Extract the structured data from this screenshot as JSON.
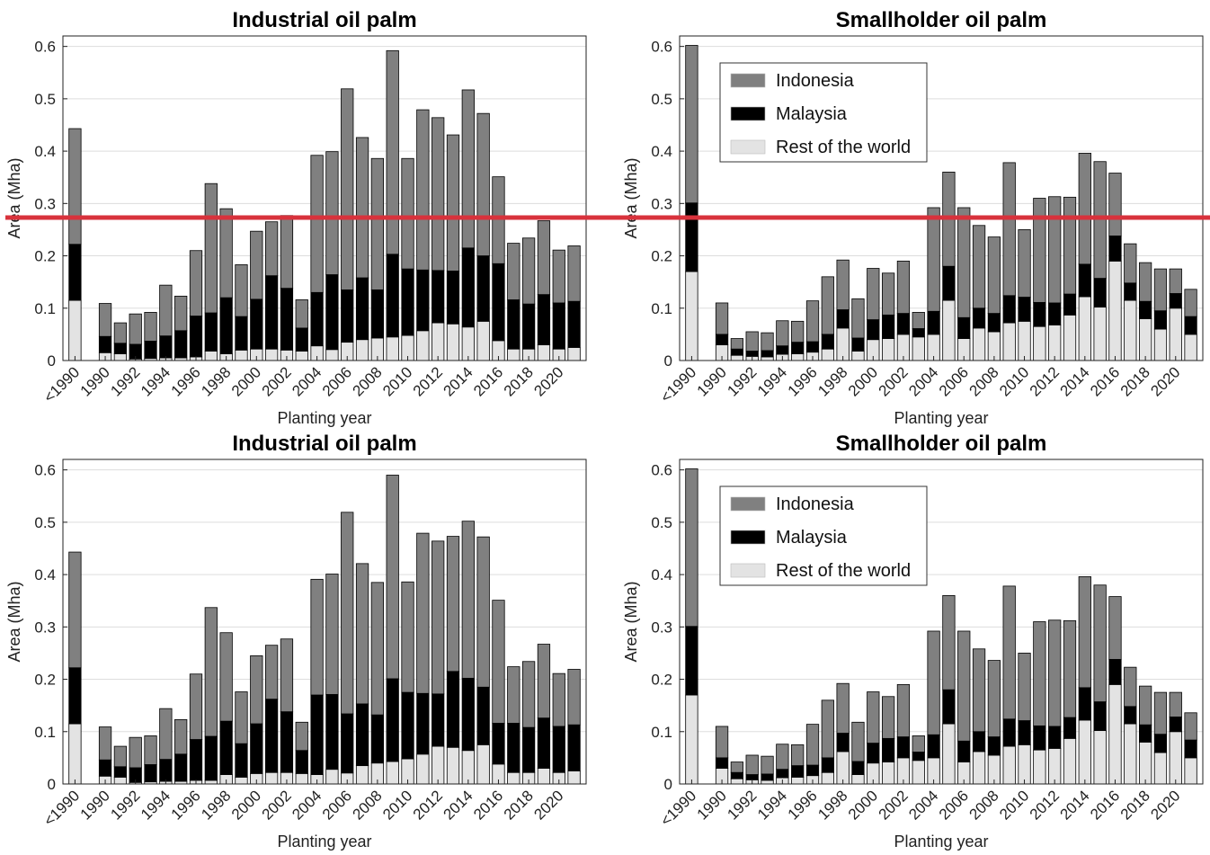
{
  "colors": {
    "Indonesia": "#808080",
    "Malaysia": "#000000",
    "Rest of the world": "#e3e3e3",
    "grid": "#dddddd",
    "overlay_line": "#d8323c"
  },
  "overlay": {
    "type": "horizontal-line",
    "color": "#d8323c",
    "description": "red horizontal line across the figure"
  },
  "chart_data": [
    {
      "type": "bar",
      "stacked": true,
      "title": "Industrial oil palm",
      "xlabel": "Planting year",
      "ylabel": "Area (Mha)",
      "ylim": [
        0,
        0.62
      ],
      "yticks": [
        "0",
        "0.1",
        "0.2",
        "0.3",
        "0.4",
        "0.5",
        "0.6"
      ],
      "grid": true,
      "legend": "none",
      "gap_after_first": true,
      "categories": [
        "<1990",
        "1990",
        "1991",
        "1992",
        "1993",
        "1994",
        "1995",
        "1996",
        "1997",
        "1998",
        "1999",
        "2000",
        "2001",
        "2002",
        "2003",
        "2004",
        "2005",
        "2006",
        "2007",
        "2008",
        "2009",
        "2010",
        "2011",
        "2012",
        "2013",
        "2014",
        "2015",
        "2016",
        "2017",
        "2018",
        "2019",
        "2020",
        "2021"
      ],
      "xtick_labels": [
        "<1990",
        "1990",
        "1992",
        "1994",
        "1996",
        "1998",
        "2000",
        "2002",
        "2004",
        "2006",
        "2008",
        "2010",
        "2012",
        "2014",
        "2016",
        "2018",
        "2020"
      ],
      "series": [
        {
          "name": "Rest of the world",
          "values": [
            0.115,
            0.015,
            0.013,
            0.003,
            0.004,
            0.005,
            0.005,
            0.007,
            0.018,
            0.013,
            0.02,
            0.022,
            0.022,
            0.02,
            0.018,
            0.028,
            0.021,
            0.035,
            0.04,
            0.043,
            0.045,
            0.048,
            0.057,
            0.072,
            0.07,
            0.064,
            0.075,
            0.038,
            0.022,
            0.022,
            0.03,
            0.022,
            0.025
          ]
        },
        {
          "name": "Malaysia",
          "values": [
            0.107,
            0.031,
            0.02,
            0.028,
            0.033,
            0.042,
            0.052,
            0.078,
            0.073,
            0.107,
            0.064,
            0.095,
            0.14,
            0.118,
            0.044,
            0.102,
            0.143,
            0.1,
            0.118,
            0.092,
            0.158,
            0.127,
            0.116,
            0.1,
            0.101,
            0.151,
            0.125,
            0.147,
            0.094,
            0.086,
            0.096,
            0.088,
            0.088
          ]
        },
        {
          "name": "Indonesia",
          "values": [
            0.221,
            0.063,
            0.039,
            0.058,
            0.055,
            0.097,
            0.066,
            0.125,
            0.247,
            0.17,
            0.099,
            0.13,
            0.103,
            0.139,
            0.054,
            0.262,
            0.235,
            0.384,
            0.268,
            0.251,
            0.389,
            0.211,
            0.306,
            0.292,
            0.26,
            0.302,
            0.272,
            0.166,
            0.108,
            0.126,
            0.141,
            0.101,
            0.106
          ]
        }
      ]
    },
    {
      "type": "bar",
      "stacked": true,
      "title": "Smallholder oil palm",
      "xlabel": "Planting year",
      "ylabel": "Area (Mha)",
      "ylim": [
        0,
        0.62
      ],
      "yticks": [
        "0",
        "0.1",
        "0.2",
        "0.3",
        "0.4",
        "0.5",
        "0.6"
      ],
      "grid": true,
      "legend": "top-left",
      "legend_entries": [
        "Indonesia",
        "Malaysia",
        "Rest of the world"
      ],
      "gap_after_first": true,
      "categories": [
        "<1990",
        "1990",
        "1991",
        "1992",
        "1993",
        "1994",
        "1995",
        "1996",
        "1997",
        "1998",
        "1999",
        "2000",
        "2001",
        "2002",
        "2003",
        "2004",
        "2005",
        "2006",
        "2007",
        "2008",
        "2009",
        "2010",
        "2011",
        "2012",
        "2013",
        "2014",
        "2015",
        "2016",
        "2017",
        "2018",
        "2019",
        "2020",
        "2021"
      ],
      "xtick_labels": [
        "<1990",
        "1990",
        "1992",
        "1994",
        "1996",
        "1998",
        "2000",
        "2002",
        "2004",
        "2006",
        "2008",
        "2010",
        "2012",
        "2014",
        "2016",
        "2018",
        "2020"
      ],
      "series": [
        {
          "name": "Rest of the world",
          "values": [
            0.17,
            0.03,
            0.01,
            0.008,
            0.007,
            0.012,
            0.013,
            0.016,
            0.022,
            0.062,
            0.018,
            0.04,
            0.042,
            0.05,
            0.045,
            0.05,
            0.115,
            0.042,
            0.062,
            0.055,
            0.072,
            0.075,
            0.065,
            0.068,
            0.087,
            0.122,
            0.102,
            0.19,
            0.115,
            0.08,
            0.06,
            0.1,
            0.05
          ]
        },
        {
          "name": "Malaysia",
          "values": [
            0.131,
            0.02,
            0.012,
            0.01,
            0.012,
            0.016,
            0.022,
            0.02,
            0.028,
            0.035,
            0.025,
            0.038,
            0.045,
            0.04,
            0.016,
            0.044,
            0.065,
            0.04,
            0.038,
            0.035,
            0.052,
            0.046,
            0.046,
            0.042,
            0.04,
            0.062,
            0.055,
            0.048,
            0.033,
            0.033,
            0.035,
            0.028,
            0.034
          ]
        },
        {
          "name": "Indonesia",
          "values": [
            0.301,
            0.06,
            0.02,
            0.037,
            0.034,
            0.048,
            0.04,
            0.078,
            0.11,
            0.095,
            0.075,
            0.098,
            0.08,
            0.1,
            0.031,
            0.198,
            0.18,
            0.21,
            0.158,
            0.146,
            0.254,
            0.129,
            0.199,
            0.203,
            0.185,
            0.212,
            0.223,
            0.12,
            0.075,
            0.074,
            0.08,
            0.047,
            0.052
          ]
        }
      ]
    },
    {
      "type": "bar",
      "stacked": true,
      "title": "Industrial oil palm",
      "xlabel": "Planting year",
      "ylabel": "Area (Mha)",
      "ylim": [
        0,
        0.62
      ],
      "yticks": [
        "0",
        "0.1",
        "0.2",
        "0.3",
        "0.4",
        "0.5",
        "0.6"
      ],
      "grid": true,
      "legend": "none",
      "gap_after_first": true,
      "categories": [
        "<1990",
        "1990",
        "1991",
        "1992",
        "1993",
        "1994",
        "1995",
        "1996",
        "1997",
        "1998",
        "1999",
        "2000",
        "2001",
        "2002",
        "2003",
        "2004",
        "2005",
        "2006",
        "2007",
        "2008",
        "2009",
        "2010",
        "2011",
        "2012",
        "2013",
        "2014",
        "2015",
        "2016",
        "2017",
        "2018",
        "2019",
        "2020",
        "2021"
      ],
      "xtick_labels": [
        "<1990",
        "1990",
        "1992",
        "1994",
        "1996",
        "1998",
        "2000",
        "2002",
        "2004",
        "2006",
        "2008",
        "2010",
        "2012",
        "2014",
        "2016",
        "2018",
        "2020"
      ],
      "series": [
        {
          "name": "Rest of the world",
          "values": [
            0.115,
            0.015,
            0.013,
            0.003,
            0.004,
            0.005,
            0.005,
            0.007,
            0.007,
            0.018,
            0.013,
            0.02,
            0.022,
            0.022,
            0.02,
            0.018,
            0.028,
            0.021,
            0.035,
            0.04,
            0.043,
            0.048,
            0.057,
            0.072,
            0.07,
            0.064,
            0.075,
            0.038,
            0.022,
            0.022,
            0.03,
            0.022,
            0.025
          ]
        },
        {
          "name": "Malaysia",
          "values": [
            0.107,
            0.031,
            0.02,
            0.028,
            0.033,
            0.042,
            0.052,
            0.078,
            0.084,
            0.102,
            0.064,
            0.095,
            0.14,
            0.116,
            0.044,
            0.152,
            0.143,
            0.113,
            0.118,
            0.092,
            0.158,
            0.127,
            0.116,
            0.1,
            0.145,
            0.138,
            0.11,
            0.078,
            0.094,
            0.086,
            0.096,
            0.088,
            0.088
          ]
        },
        {
          "name": "Indonesia",
          "values": [
            0.221,
            0.063,
            0.039,
            0.058,
            0.055,
            0.097,
            0.066,
            0.125,
            0.246,
            0.169,
            0.099,
            0.13,
            0.103,
            0.139,
            0.054,
            0.221,
            0.23,
            0.385,
            0.268,
            0.253,
            0.389,
            0.211,
            0.306,
            0.292,
            0.258,
            0.3,
            0.287,
            0.235,
            0.108,
            0.126,
            0.141,
            0.101,
            0.106
          ]
        }
      ]
    },
    {
      "type": "bar",
      "stacked": true,
      "title": "Smallholder oil palm",
      "xlabel": "Planting year",
      "ylabel": "Area (Mha)",
      "ylim": [
        0,
        0.62
      ],
      "yticks": [
        "0",
        "0.1",
        "0.2",
        "0.3",
        "0.4",
        "0.5",
        "0.6"
      ],
      "grid": true,
      "legend": "top-left",
      "legend_entries": [
        "Indonesia",
        "Malaysia",
        "Rest of the world"
      ],
      "gap_after_first": true,
      "categories": [
        "<1990",
        "1990",
        "1991",
        "1992",
        "1993",
        "1994",
        "1995",
        "1996",
        "1997",
        "1998",
        "1999",
        "2000",
        "2001",
        "2002",
        "2003",
        "2004",
        "2005",
        "2006",
        "2007",
        "2008",
        "2009",
        "2010",
        "2011",
        "2012",
        "2013",
        "2014",
        "2015",
        "2016",
        "2017",
        "2018",
        "2019",
        "2020",
        "2021"
      ],
      "xtick_labels": [
        "<1990",
        "1990",
        "1992",
        "1994",
        "1996",
        "1998",
        "2000",
        "2002",
        "2004",
        "2006",
        "2008",
        "2010",
        "2012",
        "2014",
        "2016",
        "2018",
        "2020"
      ],
      "series": [
        {
          "name": "Rest of the world",
          "values": [
            0.17,
            0.03,
            0.01,
            0.008,
            0.007,
            0.012,
            0.013,
            0.016,
            0.022,
            0.062,
            0.018,
            0.04,
            0.042,
            0.05,
            0.045,
            0.05,
            0.115,
            0.042,
            0.062,
            0.055,
            0.072,
            0.075,
            0.065,
            0.068,
            0.087,
            0.122,
            0.102,
            0.19,
            0.115,
            0.08,
            0.06,
            0.1,
            0.05
          ]
        },
        {
          "name": "Malaysia",
          "values": [
            0.131,
            0.02,
            0.012,
            0.01,
            0.012,
            0.016,
            0.022,
            0.02,
            0.028,
            0.035,
            0.025,
            0.038,
            0.045,
            0.04,
            0.016,
            0.044,
            0.065,
            0.04,
            0.038,
            0.035,
            0.052,
            0.046,
            0.046,
            0.042,
            0.04,
            0.062,
            0.055,
            0.048,
            0.033,
            0.033,
            0.035,
            0.028,
            0.034
          ]
        },
        {
          "name": "Indonesia",
          "values": [
            0.301,
            0.06,
            0.02,
            0.037,
            0.034,
            0.048,
            0.04,
            0.078,
            0.11,
            0.095,
            0.075,
            0.098,
            0.08,
            0.1,
            0.031,
            0.198,
            0.18,
            0.21,
            0.158,
            0.146,
            0.254,
            0.129,
            0.199,
            0.203,
            0.185,
            0.212,
            0.223,
            0.12,
            0.075,
            0.074,
            0.08,
            0.047,
            0.052
          ]
        }
      ]
    }
  ]
}
